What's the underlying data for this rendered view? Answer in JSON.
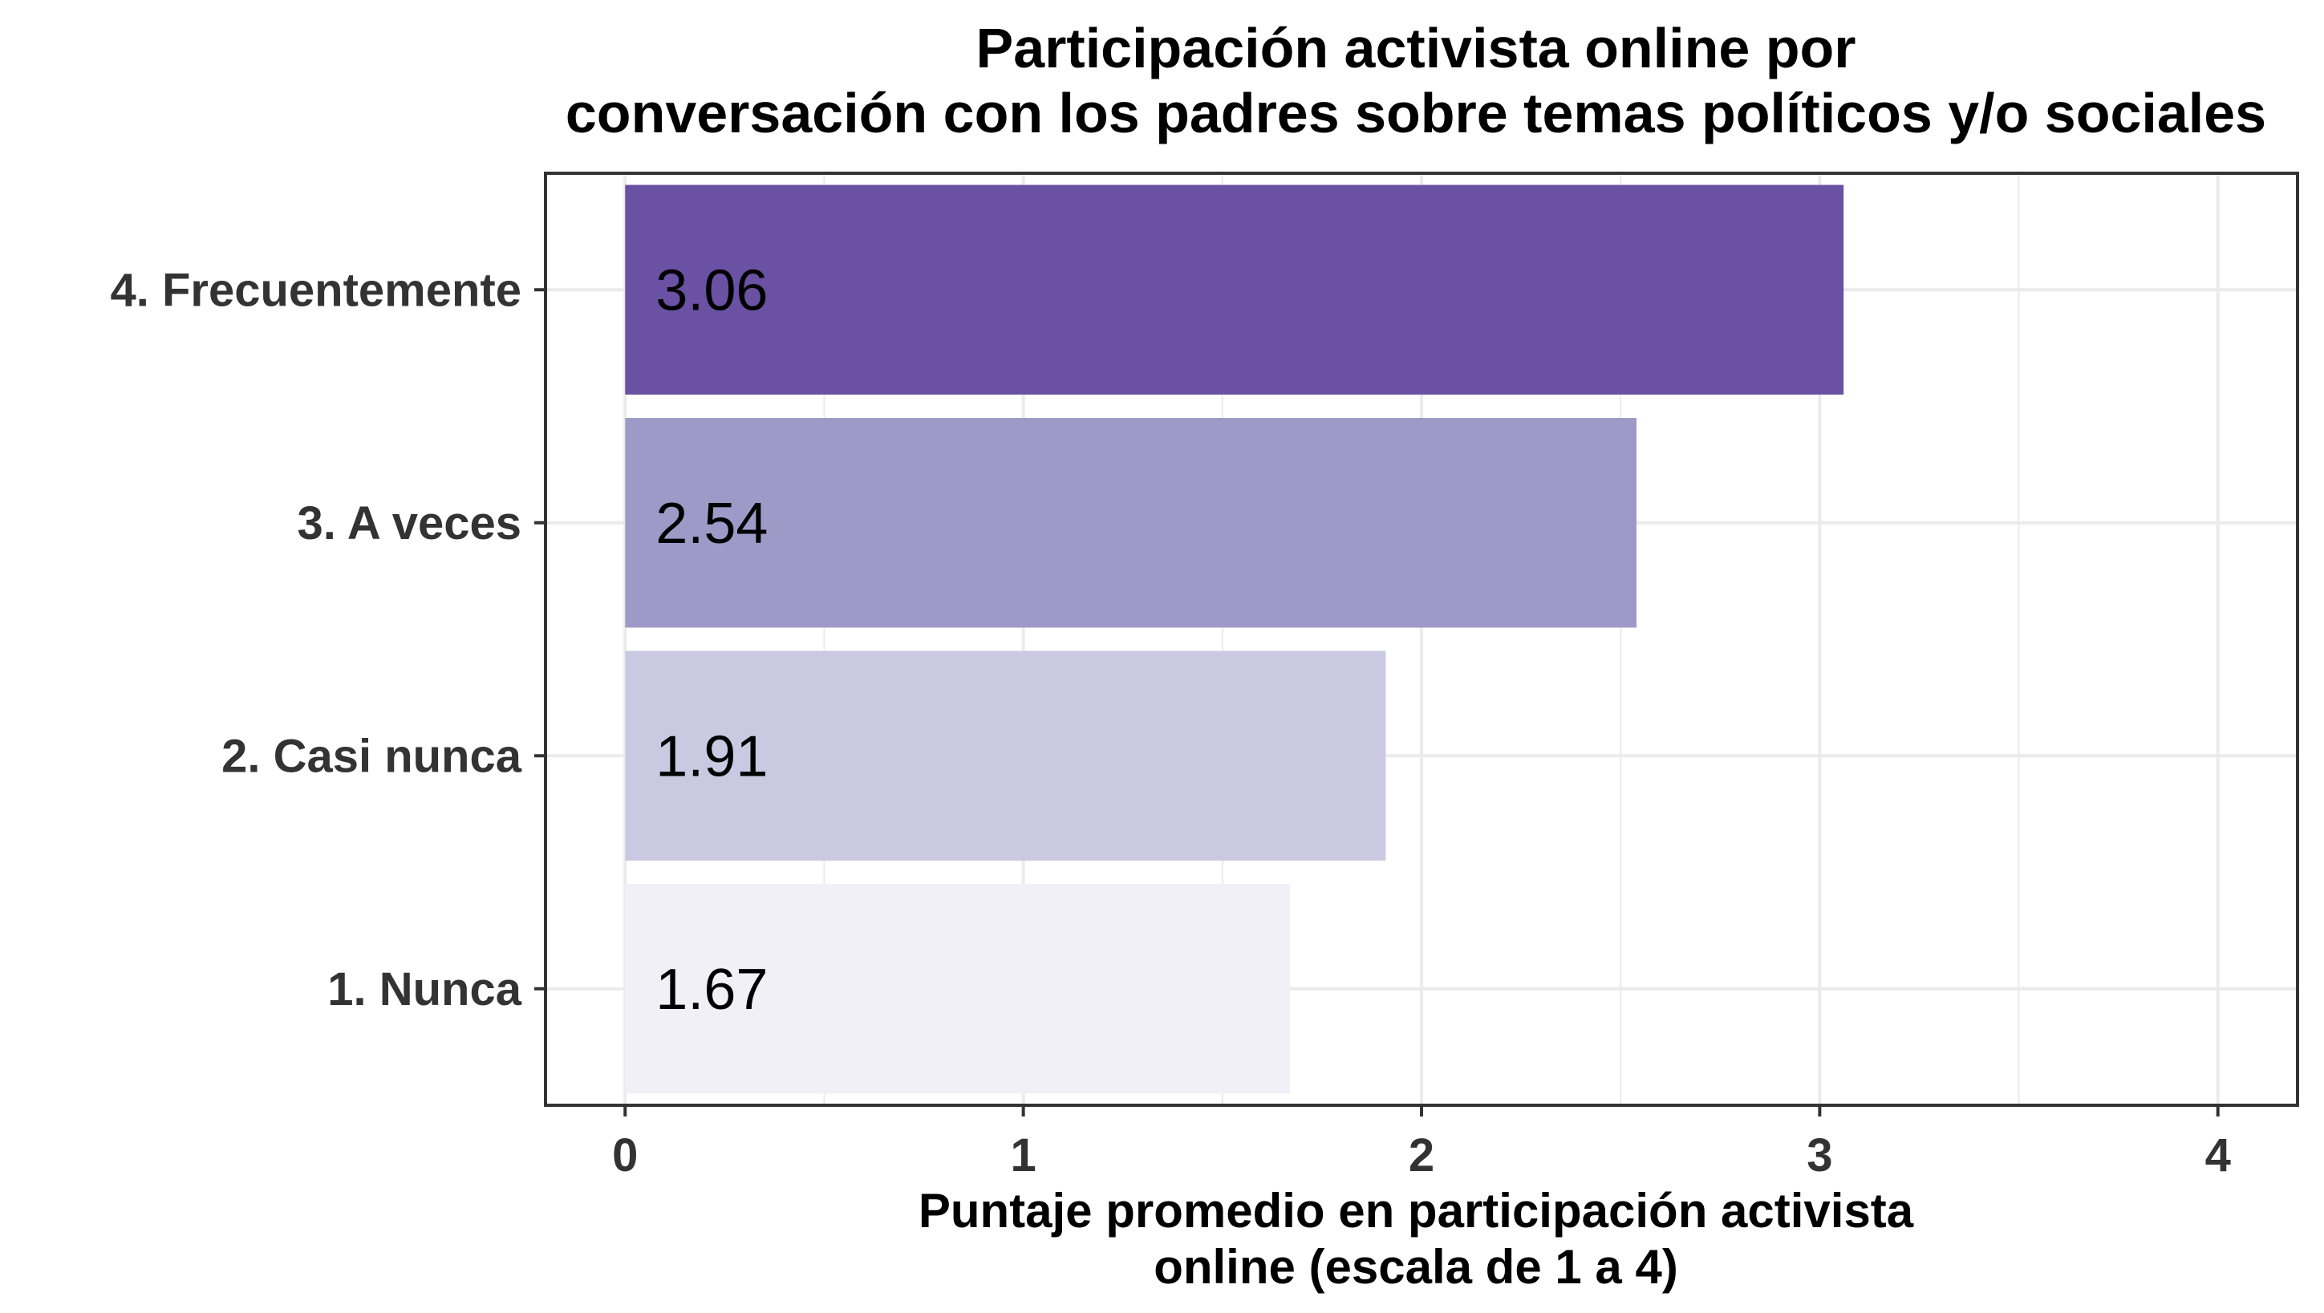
{
  "chart_data": {
    "type": "bar",
    "orientation": "horizontal",
    "title": "Participación activista online por conversación con los padres sobre temas políticos y/o sociales",
    "title_lines": [
      "Participación activista online por",
      "conversación con los padres sobre temas políticos y/o sociales"
    ],
    "xlabel": "Puntaje promedio en participación activista online (escala de 1 a 4)",
    "xlabel_lines": [
      "Puntaje promedio en participación activista",
      "online (escala de 1 a 4)"
    ],
    "ylabel": "",
    "categories": [
      "4. Frecuentemente",
      "3. A veces",
      "2. Casi nunca",
      "1. Nunca"
    ],
    "values": [
      3.06,
      2.54,
      1.91,
      1.67
    ],
    "value_labels": [
      "3.06",
      "2.54",
      "1.91",
      "1.67"
    ],
    "colors": [
      "#6A51A3",
      "#9E9AC8",
      "#CBC9E2",
      "#F2F0F7"
    ],
    "xlim": [
      -0.2,
      4.2
    ],
    "x_ticks": [
      0,
      1,
      2,
      3,
      4
    ],
    "x_tick_labels": [
      "0",
      "1",
      "2",
      "3",
      "4"
    ],
    "grid": true,
    "legend": "none"
  }
}
